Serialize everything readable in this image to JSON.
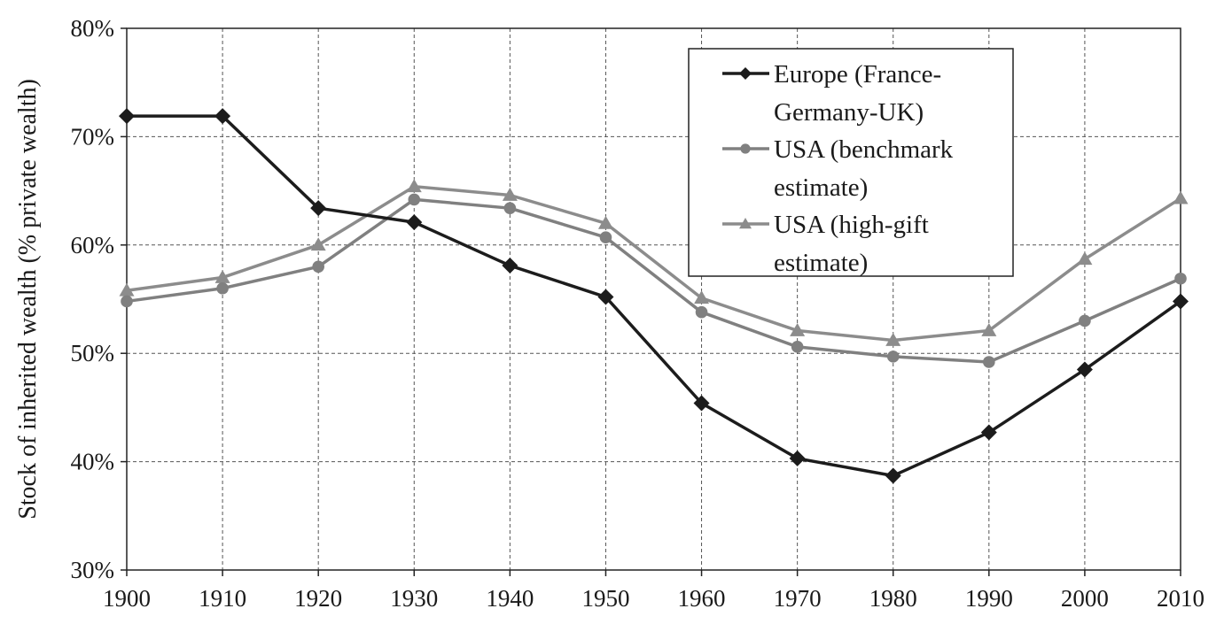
{
  "chart_data": {
    "type": "line",
    "title": "",
    "xlabel": "",
    "ylabel": "Stock of inherited wealth (% private wealth)",
    "x": [
      1900,
      1910,
      1920,
      1930,
      1940,
      1950,
      1960,
      1970,
      1980,
      1990,
      2000,
      2010
    ],
    "x_tick_labels": [
      "1900",
      "1910",
      "1920",
      "1930",
      "1940",
      "1950",
      "1960",
      "1970",
      "1980",
      "1990",
      "2000",
      "2010"
    ],
    "ylim": [
      30,
      80
    ],
    "y_ticks": [
      30,
      40,
      50,
      60,
      70,
      80
    ],
    "y_tick_labels": [
      "30%",
      "40%",
      "50%",
      "60%",
      "70%",
      "80%"
    ],
    "grid": true,
    "legend_position": "top-right",
    "series": [
      {
        "name": "Europe (France-Germany-UK)",
        "legend_lines": [
          "Europe (France-",
          "Germany-UK)"
        ],
        "marker": "diamond",
        "color": "#1c1c1c",
        "values": [
          71.9,
          71.9,
          63.4,
          62.1,
          58.1,
          55.2,
          45.4,
          40.3,
          38.7,
          42.7,
          48.5,
          54.8
        ]
      },
      {
        "name": "USA (benchmark estimate)",
        "legend_lines": [
          "USA (benchmark",
          "estimate)"
        ],
        "marker": "circle",
        "color": "#808080",
        "values": [
          54.8,
          56.0,
          58.0,
          64.2,
          63.4,
          60.7,
          53.8,
          50.6,
          49.7,
          49.2,
          53.0,
          56.9
        ]
      },
      {
        "name": "USA (high-gift estimate)",
        "legend_lines": [
          "USA (high-gift",
          "estimate)"
        ],
        "marker": "triangle",
        "color": "#8c8c8c",
        "values": [
          55.8,
          57.0,
          60.0,
          65.4,
          64.6,
          62.0,
          55.1,
          52.1,
          51.2,
          52.1,
          58.7,
          64.3
        ]
      }
    ]
  }
}
